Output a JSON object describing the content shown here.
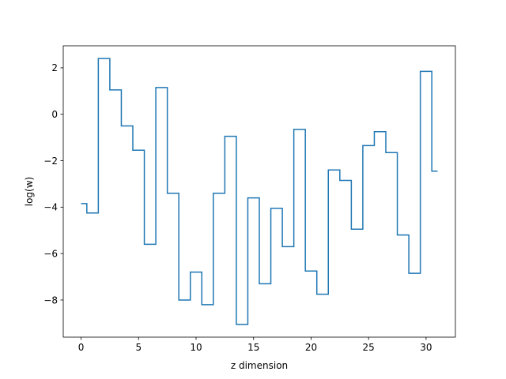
{
  "chart_data": {
    "type": "line",
    "drawstyle": "steps-mid",
    "title": "",
    "xlabel": "z dimension",
    "ylabel": "log(w)",
    "xlim": [
      -1.55,
      32.55
    ],
    "ylim": [
      -9.6,
      2.95
    ],
    "xticks": [
      0,
      5,
      10,
      15,
      20,
      25,
      30
    ],
    "xtick_labels": [
      "0",
      "5",
      "10",
      "15",
      "20",
      "25",
      "30"
    ],
    "yticks": [
      -8,
      -6,
      -4,
      -2,
      0,
      2
    ],
    "ytick_labels": [
      "−8",
      "−6",
      "−4",
      "−2",
      "0",
      "2"
    ],
    "grid": false,
    "series": [
      {
        "color": "#1f77b4",
        "x": [
          0,
          1,
          2,
          3,
          4,
          5,
          6,
          7,
          8,
          9,
          10,
          11,
          12,
          13,
          14,
          15,
          16,
          17,
          18,
          19,
          20,
          21,
          22,
          23,
          24,
          25,
          26,
          27,
          28,
          29,
          30,
          31
        ],
        "y": [
          -3.85,
          -4.25,
          2.4,
          1.05,
          -0.5,
          -1.55,
          -5.6,
          1.15,
          -3.4,
          -8.0,
          -6.8,
          -8.2,
          -3.4,
          -0.95,
          -9.05,
          -3.6,
          -7.3,
          -4.05,
          -5.7,
          -0.65,
          -6.75,
          -7.75,
          -2.4,
          -2.85,
          -4.95,
          -1.35,
          -0.75,
          -1.65,
          -5.2,
          -6.85,
          1.85,
          -2.45
        ]
      }
    ]
  }
}
